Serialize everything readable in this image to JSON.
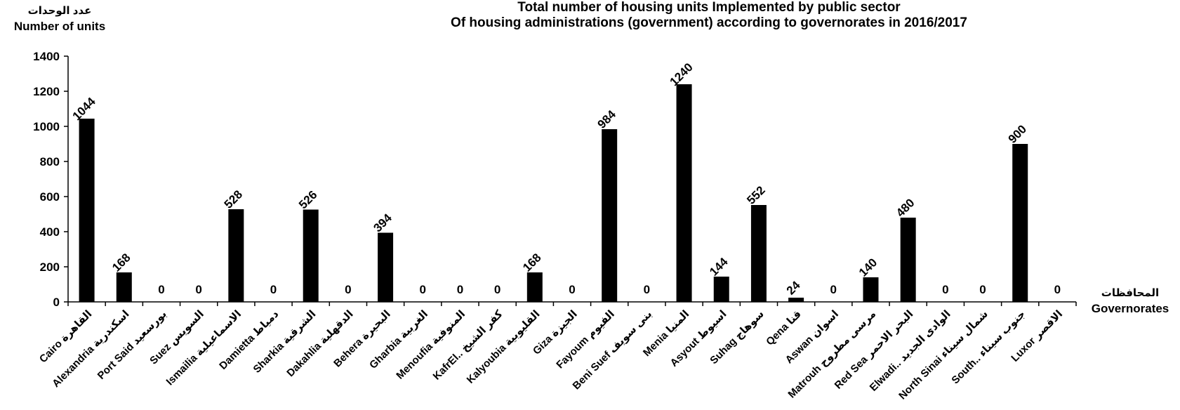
{
  "chart_data": {
    "type": "bar",
    "title": "Total number of housing units Implemented by public sector",
    "subtitle": "Of housing administrations (government) according to governorates in 2016/2017",
    "ylabel_ar": "عدد الوحدات",
    "ylabel": "Number of units",
    "xlabel_ar": "المحافظات",
    "xlabel": "Governorates",
    "ylim": [
      0,
      1400
    ],
    "yticks": [
      0,
      200,
      400,
      600,
      800,
      1000,
      1200,
      1400
    ],
    "grid": false,
    "bar_color": "#000000",
    "categories": [
      "Cairo القاهرة",
      "Alexandria اسكندرية",
      "Port Said بورسعيد",
      "Suez السويس",
      "Ismailia الاسماعيلية",
      "Damietta دمياط",
      "Sharkia الشرقية",
      "Dakahlia الدقهلية",
      "Behera البحيرة",
      "Gharbia الغربية",
      "Menoufia المنوفية",
      "KafrEl.. كفر الشيخ",
      "Kalyoubia القليوبية",
      "Giza الجيزة",
      "Fayoum الفيوم",
      "Beni Suef بنى سويف",
      "Menia المنيا",
      "Asyout اسيوط",
      "Suhag سوهاج",
      "Qena قنا",
      "Aswan اسوان",
      "Matrouh مرسى مطروح",
      "Red Sea البحر الاحمر",
      "Elwadi.. الوادى الجديد",
      "North Sinai شمال سيناء",
      "South.. جنوب سيناء",
      "Luxor الاقصر"
    ],
    "values": [
      1044,
      168,
      0,
      0,
      528,
      0,
      526,
      0,
      394,
      0,
      0,
      0,
      168,
      0,
      984,
      0,
      1240,
      144,
      552,
      24,
      0,
      140,
      480,
      0,
      0,
      900,
      0
    ]
  }
}
